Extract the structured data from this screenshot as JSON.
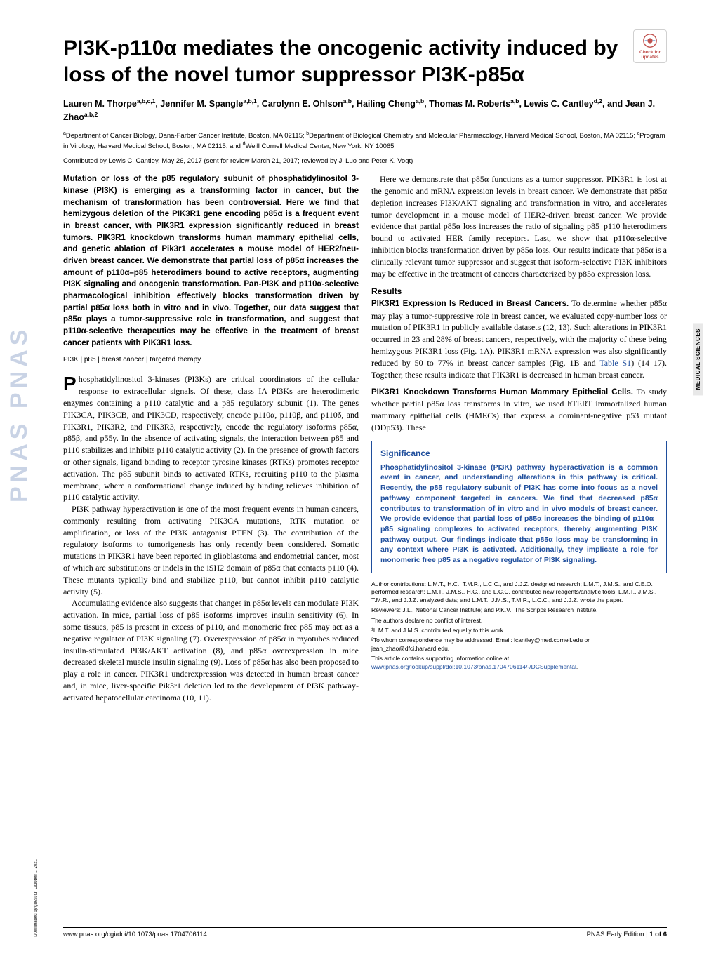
{
  "watermark": "PNAS   PNAS",
  "badge": {
    "label": "Check for\nupdates"
  },
  "title": "PI3K-p110α mediates the oncogenic activity induced by loss of the novel tumor suppressor PI3K-p85α",
  "authors_html": "Lauren M. Thorpe<sup>a,b,c,1</sup>, Jennifer M. Spangle<sup>a,b,1</sup>, Carolynn E. Ohlson<sup>a,b</sup>, Hailing Cheng<sup>a,b</sup>, Thomas M. Roberts<sup>a,b</sup>, Lewis C. Cantley<sup>d,2</sup>, and Jean J. Zhao<sup>a,b,2</sup>",
  "affiliations_html": "<sup>a</sup>Department of Cancer Biology, Dana-Farber Cancer Institute, Boston, MA 02115; <sup>b</sup>Department of Biological Chemistry and Molecular Pharmacology, Harvard Medical School, Boston, MA 02115; <sup>c</sup>Program in Virology, Harvard Medical School, Boston, MA 02115; and <sup>d</sup>Weill Cornell Medical Center, New York, NY 10065",
  "contributed": "Contributed by Lewis C. Cantley, May 26, 2017 (sent for review March 21, 2017; reviewed by Ji Luo and Peter K. Vogt)",
  "abstract": "Mutation or loss of the p85 regulatory subunit of phosphatidylinositol 3-kinase (PI3K) is emerging as a transforming factor in cancer, but the mechanism of transformation has been controversial. Here we find that hemizygous deletion of the PIK3R1 gene encoding p85α is a frequent event in breast cancer, with PIK3R1 expression significantly reduced in breast tumors. PIK3R1 knockdown transforms human mammary epithelial cells, and genetic ablation of Pik3r1 accelerates a mouse model of HER2/neu-driven breast cancer. We demonstrate that partial loss of p85α increases the amount of p110α–p85 heterodimers bound to active receptors, augmenting PI3K signaling and oncogenic transformation. Pan-PI3K and p110α-selective pharmacological inhibition effectively blocks transformation driven by partial p85α loss both in vitro and in vivo. Together, our data suggest that p85α plays a tumor-suppressive role in transformation, and suggest that p110α-selective therapeutics may be effective in the treatment of breast cancer patients with PIK3R1 loss.",
  "keywords": "PI3K | p85 | breast cancer | targeted therapy",
  "left_body": {
    "p1_first": "P",
    "p1": "hosphatidylinositol 3-kinases (PI3Ks) are critical coordinators of the cellular response to extracellular signals. Of these, class IA PI3Ks are heterodimeric enzymes containing a p110 catalytic and a p85 regulatory subunit (1). The genes PIK3CA, PIK3CB, and PIK3CD, respectively, encode p110α, p110β, and p110δ, and PIK3R1, PIK3R2, and PIK3R3, respectively, encode the regulatory isoforms p85α, p85β, and p55γ. In the absence of activating signals, the interaction between p85 and p110 stabilizes and inhibits p110 catalytic activity (2). In the presence of growth factors or other signals, ligand binding to receptor tyrosine kinases (RTKs) promotes receptor activation. The p85 subunit binds to activated RTKs, recruiting p110 to the plasma membrane, where a conformational change induced by binding relieves inhibition of p110 catalytic activity.",
    "p2": "PI3K pathway hyperactivation is one of the most frequent events in human cancers, commonly resulting from activating PIK3CA mutations, RTK mutation or amplification, or loss of the PI3K antagonist PTEN (3). The contribution of the regulatory isoforms to tumorigenesis has only recently been considered. Somatic mutations in PIK3R1 have been reported in glioblastoma and endometrial cancer, most of which are substitutions or indels in the iSH2 domain of p85α that contacts p110 (4). These mutants typically bind and stabilize p110, but cannot inhibit p110 catalytic activity (5).",
    "p3": "Accumulating evidence also suggests that changes in p85α levels can modulate PI3K activation. In mice, partial loss of p85 isoforms improves insulin sensitivity (6). In some tissues, p85 is present in excess of p110, and monomeric free p85 may act as a negative regulator of PI3K signaling (7). Overexpression of p85α in myotubes reduced insulin-stimulated PI3K/AKT activation (8), and p85α overexpression in mice decreased skeletal muscle insulin signaling (9). Loss of p85α has also been proposed to play a role in cancer. PIK3R1 underexpression was detected in human breast cancer and, in mice, liver-specific Pik3r1 deletion led to the development of PI3K pathway-activated hepatocellular carcinoma (10, 11)."
  },
  "right_body": {
    "intro": "Here we demonstrate that p85α functions as a tumor suppressor. PIK3R1 is lost at the genomic and mRNA expression levels in breast cancer. We demonstrate that p85α depletion increases PI3K/AKT signaling and transformation in vitro, and accelerates tumor development in a mouse model of HER2-driven breast cancer. We provide evidence that partial p85α loss increases the ratio of signaling p85–p110 heterodimers bound to activated HER family receptors. Last, we show that p110α-selective inhibition blocks transformation driven by p85α loss. Our results indicate that p85α is a clinically relevant tumor suppressor and suggest that isoform-selective PI3K inhibitors may be effective in the treatment of cancers characterized by p85α expression loss.",
    "results_head": "Results",
    "sub1_head": "PIK3R1 Expression Is Reduced in Breast Cancers.",
    "sub1_text": " To determine whether p85α may play a tumor-suppressive role in breast cancer, we evaluated copy-number loss or mutation of PIK3R1 in publicly available datasets (12, 13). Such alterations in PIK3R1 occurred in 23 and 28% of breast cancers, respectively, with the majority of these being hemizygous PIK3R1 loss (Fig. 1A). PIK3R1 mRNA expression was also significantly reduced by 50 to 77% in breast cancer samples (Fig. 1B and ",
    "sub1_link": "Table S1",
    "sub1_text2": ") (14–17). Together, these results indicate that PIK3R1 is decreased in human breast cancer.",
    "sub2_head": "PIK3R1 Knockdown Transforms Human Mammary Epithelial Cells.",
    "sub2_text": " To study whether partial p85α loss transforms in vitro, we used hTERT immortalized human mammary epithelial cells (HMECs) that express a dominant-negative p53 mutant (DDp53). These"
  },
  "significance": {
    "head": "Significance",
    "text": "Phosphatidylinositol 3-kinase (PI3K) pathway hyperactivation is a common event in cancer, and understanding alterations in this pathway is critical. Recently, the p85 regulatory subunit of PI3K has come into focus as a novel pathway component targeted in cancers. We find that decreased p85α contributes to transformation of in vitro and in vivo models of breast cancer. We provide evidence that partial loss of p85α increases the binding of p110α–p85 signaling complexes to activated receptors, thereby augmenting PI3K pathway output. Our findings indicate that p85α loss may be transforming in any context where PI3K is activated. Additionally, they implicate a role for monomeric free p85 as a negative regulator of PI3K signaling."
  },
  "footnotes": {
    "contrib": "Author contributions: L.M.T., H.C., T.M.R., L.C.C., and J.J.Z. designed research; L.M.T., J.M.S., and C.E.O. performed research; L.M.T., J.M.S., H.C., and L.C.C. contributed new reagents/analytic tools; L.M.T., J.M.S., T.M.R., and J.J.Z. analyzed data; and L.M.T., J.M.S., T.M.R., L.C.C., and J.J.Z. wrote the paper.",
    "reviewers": "Reviewers: J.L., National Cancer Institute; and P.K.V., The Scripps Research Institute.",
    "conflict": "The authors declare no conflict of interest.",
    "equal": "¹L.M.T. and J.M.S. contributed equally to this work.",
    "corr": "²To whom correspondence may be addressed. Email: lcantley@med.cornell.edu or jean_zhao@dfci.harvard.edu.",
    "supp_pre": "This article contains supporting information online at ",
    "supp_link": "www.pnas.org/lookup/suppl/doi:10.1073/pnas.1704706114/-/DCSupplemental",
    "supp_post": "."
  },
  "footer": {
    "left": "www.pnas.org/cgi/doi/10.1073/pnas.1704706114",
    "right_pre": "PNAS Early Edition | ",
    "right_page": "1 of 6"
  },
  "side_label": "MEDICAL SCIENCES",
  "download": "Downloaded by guest on October 1, 2021",
  "colors": {
    "accent": "#1f4e9c",
    "badge_text": "#c0504d",
    "watermark": "rgba(100,130,180,0.35)",
    "side_bg": "#e8e8e8"
  }
}
